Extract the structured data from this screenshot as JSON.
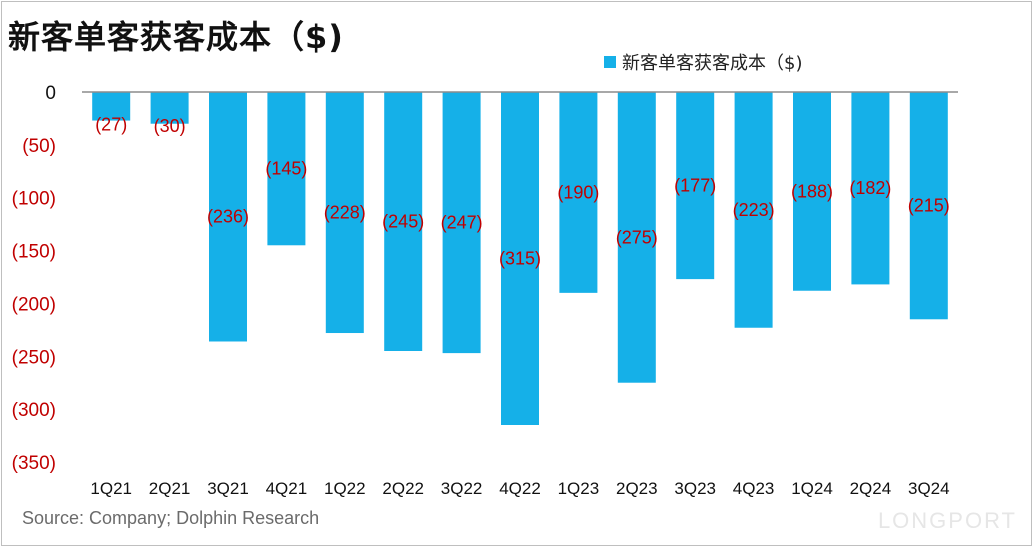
{
  "title": "新客单客获客成本（$)",
  "legend": {
    "label": "新客单客获客成本（$)",
    "color": "#15B0E8"
  },
  "source": "Source: Company; Dolphin Research",
  "watermark": "LONGPORT",
  "chart_data": {
    "type": "bar",
    "categories": [
      "1Q21",
      "2Q21",
      "3Q21",
      "4Q21",
      "1Q22",
      "2Q22",
      "3Q22",
      "4Q22",
      "1Q23",
      "2Q23",
      "3Q23",
      "4Q23",
      "1Q24",
      "2Q24",
      "3Q24"
    ],
    "series": [
      {
        "name": "新客单客获客成本（$)",
        "values": [
          -27,
          -30,
          -236,
          -145,
          -228,
          -245,
          -247,
          -315,
          -190,
          -275,
          -177,
          -223,
          -188,
          -182,
          -215
        ]
      }
    ],
    "data_labels": [
      "(27)",
      "(30)",
      "(236)",
      "(145)",
      "(228)",
      "(245)",
      "(247)",
      "(315)",
      "(190)",
      "(275)",
      "(177)",
      "(223)",
      "(188)",
      "(182)",
      "(215)"
    ],
    "y_tick_labels": [
      "0",
      "(50)",
      "(100)",
      "(150)",
      "(200)",
      "(250)",
      "(300)",
      "(350)"
    ],
    "ylim": [
      -350,
      0
    ],
    "legend_position": "top-right",
    "grid": false,
    "bar_color": "#15B0E8",
    "label_color": "#C00000"
  }
}
